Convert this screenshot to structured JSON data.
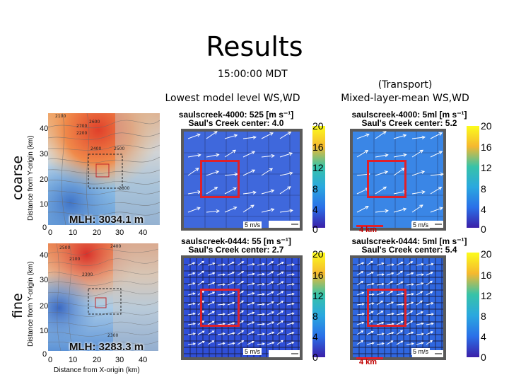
{
  "title": "Results",
  "time": "15:00:00 MDT",
  "headers": {
    "lowest": "Lowest model level WS,WD",
    "transport_line1": "(Transport)",
    "transport_line2": "Mixed-layer-mean WS,WD"
  },
  "rows": {
    "coarse": "coarse",
    "fine": "fine"
  },
  "axes": {
    "y_title": "Distance from Y-origin (km)",
    "x_title": "Distance from X-origin (km)",
    "y_ticks": [
      "40",
      "30",
      "20",
      "10",
      "0"
    ],
    "x_ticks": [
      "0",
      "10",
      "20",
      "30",
      "40"
    ]
  },
  "terrain": {
    "coarse_mlh": "MLH: 3034.1 m",
    "fine_mlh": "MLH: 3283.3 m",
    "coarse_contours": [
      "2600",
      "2700",
      "2400",
      "2500",
      "2300",
      "2200",
      "2100"
    ],
    "fine_contours": [
      "2500",
      "2100",
      "2300",
      "2400",
      "2300"
    ]
  },
  "panels": {
    "coarse_lowest": {
      "line1": "saulscreek-4000: 525 [m s⁻¹]",
      "line2": "Saul's Creek center:  4.0"
    },
    "coarse_transport": {
      "line1": "saulscreek-4000: 5ml [m s⁻¹]",
      "line2": "Saul's Creek center:  5.2"
    },
    "fine_lowest": {
      "line1": "saulscreek-0444: 55 [m s⁻¹]",
      "line2": "Saul's Creek center:  2.7"
    },
    "fine_transport": {
      "line1": "saulscreek-0444: 5ml [m s⁻¹]",
      "line2": "Saul's Creek center:  5.4"
    }
  },
  "colorbar": {
    "ticks": [
      "20",
      "16",
      "12",
      "8",
      "4",
      "0"
    ],
    "colors": [
      "#fcfc1c",
      "#f5b82f",
      "#37c3a8",
      "#2aa8df",
      "#2a70e8",
      "#3b1fa8"
    ]
  },
  "scale": {
    "ref_arrow": "5 m/s",
    "km": "4 km"
  }
}
